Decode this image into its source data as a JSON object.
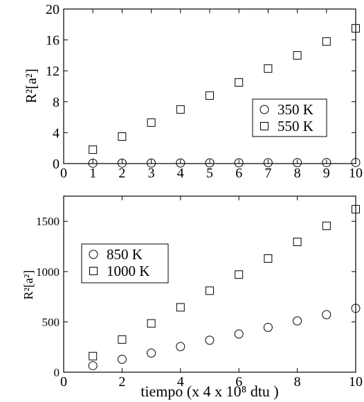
{
  "chart_data": [
    {
      "type": "scatter",
      "title": "",
      "xlabel": "",
      "ylabel": "R²[a²]",
      "xlim": [
        0,
        10
      ],
      "ylim": [
        0,
        20
      ],
      "xticks": [
        0,
        1,
        2,
        3,
        4,
        5,
        6,
        7,
        8,
        9,
        10
      ],
      "yticks": [
        0,
        4,
        8,
        12,
        16,
        20
      ],
      "legend_position": "right",
      "series": [
        {
          "name": "350 K",
          "marker": "circle",
          "x": [
            1,
            2,
            3,
            4,
            5,
            6,
            7,
            8,
            9,
            10
          ],
          "y": [
            0.05,
            0.06,
            0.07,
            0.08,
            0.09,
            0.1,
            0.11,
            0.12,
            0.13,
            0.14
          ]
        },
        {
          "name": "550 K",
          "marker": "square",
          "x": [
            1,
            2,
            3,
            4,
            5,
            6,
            7,
            8,
            9,
            10
          ],
          "y": [
            1.8,
            3.5,
            5.3,
            7.0,
            8.8,
            10.5,
            12.3,
            14.0,
            15.8,
            17.5
          ]
        }
      ]
    },
    {
      "type": "scatter",
      "title": "",
      "xlabel": "tiempo (x 4 x 10⁸ dtu )",
      "ylabel": "R²[a²]",
      "xlim": [
        0,
        10
      ],
      "ylim": [
        0,
        1750
      ],
      "xticks": [
        0,
        2,
        4,
        6,
        8,
        10
      ],
      "yticks": [
        0,
        500,
        1000,
        1500
      ],
      "legend_position": "left",
      "series": [
        {
          "name": "850 K",
          "marker": "circle",
          "x": [
            1,
            2,
            3,
            4,
            5,
            6,
            7,
            8,
            9,
            10
          ],
          "y": [
            65,
            128,
            190,
            255,
            318,
            380,
            445,
            510,
            572,
            635
          ]
        },
        {
          "name": "1000 K",
          "marker": "square",
          "x": [
            1,
            2,
            3,
            4,
            5,
            6,
            7,
            8,
            9,
            10
          ],
          "y": [
            160,
            325,
            485,
            645,
            810,
            970,
            1130,
            1295,
            1455,
            1620
          ]
        }
      ]
    }
  ]
}
